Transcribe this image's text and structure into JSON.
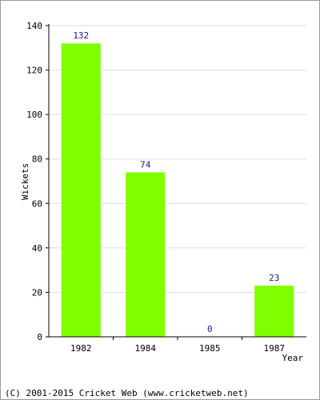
{
  "chart_data": {
    "type": "bar",
    "categories": [
      "1982",
      "1984",
      "1985",
      "1987"
    ],
    "values": [
      132,
      74,
      0,
      23
    ],
    "value_labels": [
      "132",
      "74",
      "0",
      "23"
    ],
    "title": "",
    "xlabel": "Year",
    "ylabel": "Wickets",
    "ylim": [
      0,
      140
    ],
    "yticks": [
      0,
      20,
      40,
      60,
      80,
      100,
      120,
      140
    ],
    "grid": true,
    "legend": "none",
    "colors": {
      "bar": "#80ff00",
      "grid": "#dddddd",
      "axis": "#000000",
      "data_label": "#1a1a8c"
    }
  },
  "footer": {
    "copyright": "(C) 2001-2015 Cricket Web (www.cricketweb.net)"
  }
}
